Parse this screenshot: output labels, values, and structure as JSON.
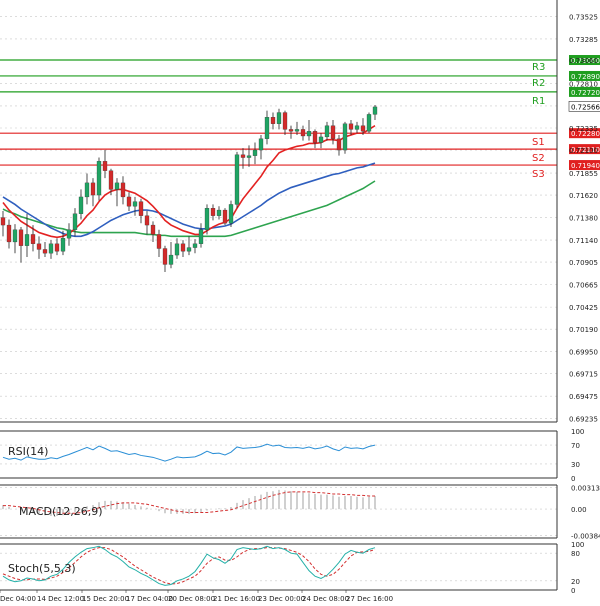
{
  "chart_data": {
    "type": "candlestick",
    "main": {
      "ylim": [
        0.692,
        0.737
      ],
      "y_ticks": [
        "0.73525",
        "0.73285",
        "0.73060",
        "0.72810",
        "0.72570",
        "0.72335",
        "0.72100",
        "0.71855",
        "0.71620",
        "0.71380",
        "0.71140",
        "0.70905",
        "0.70665",
        "0.70425",
        "0.70190",
        "0.69950",
        "0.69715",
        "0.69475",
        "0.69235"
      ],
      "current_price": "0.72566",
      "levels": [
        {
          "name": "",
          "value": 0.7306,
          "label": "0.73060",
          "kind": "res"
        },
        {
          "name": "R3",
          "value": 0.7289,
          "label": "0.72890",
          "kind": "res"
        },
        {
          "name": "R2",
          "value": 0.7272,
          "label": "0.72720",
          "kind": "res"
        },
        {
          "name": "R1",
          "value": 0.7228,
          "label": "0.72280",
          "kind": "sup",
          "side": "above"
        },
        {
          "name": "S1",
          "value": 0.7228,
          "label": "",
          "kind": "skip"
        },
        {
          "name": "S2",
          "value": 0.7211,
          "label": "0.72110",
          "kind": "sup"
        },
        {
          "name": "S3",
          "value": 0.7194,
          "label": "0.71940",
          "kind": "sup"
        }
      ],
      "candles": [
        [
          0.7138,
          0.713,
          0.7145,
          0.7118
        ],
        [
          0.713,
          0.7112,
          0.7136,
          0.7105
        ],
        [
          0.7112,
          0.7125,
          0.7131,
          0.71
        ],
        [
          0.7125,
          0.7108,
          0.7128,
          0.709
        ],
        [
          0.7108,
          0.712,
          0.7142,
          0.7096
        ],
        [
          0.712,
          0.711,
          0.713,
          0.7102
        ],
        [
          0.711,
          0.7104,
          0.7118,
          0.7094
        ],
        [
          0.7104,
          0.71,
          0.7112,
          0.7096
        ],
        [
          0.71,
          0.711,
          0.7114,
          0.7094
        ],
        [
          0.711,
          0.7102,
          0.7116,
          0.7098
        ],
        [
          0.7102,
          0.7116,
          0.7124,
          0.7098
        ],
        [
          0.7116,
          0.7125,
          0.7132,
          0.7108
        ],
        [
          0.7125,
          0.7142,
          0.7148,
          0.7118
        ],
        [
          0.7142,
          0.716,
          0.7168,
          0.7136
        ],
        [
          0.716,
          0.7175,
          0.7185,
          0.7152
        ],
        [
          0.7175,
          0.7162,
          0.718,
          0.715
        ],
        [
          0.7162,
          0.7198,
          0.7202,
          0.7156
        ],
        [
          0.7198,
          0.7188,
          0.721,
          0.718
        ],
        [
          0.7188,
          0.7168,
          0.719,
          0.7162
        ],
        [
          0.7168,
          0.7175,
          0.718,
          0.715
        ],
        [
          0.7175,
          0.716,
          0.7182,
          0.7152
        ],
        [
          0.716,
          0.715,
          0.7165,
          0.7145
        ],
        [
          0.715,
          0.7155,
          0.716,
          0.714
        ],
        [
          0.7155,
          0.714,
          0.7158,
          0.7132
        ],
        [
          0.714,
          0.713,
          0.7145,
          0.712
        ],
        [
          0.713,
          0.712,
          0.7134,
          0.7112
        ],
        [
          0.712,
          0.7105,
          0.7125,
          0.7096
        ],
        [
          0.7105,
          0.7088,
          0.7108,
          0.708
        ],
        [
          0.7088,
          0.7098,
          0.7112,
          0.7084
        ],
        [
          0.7098,
          0.711,
          0.7116,
          0.7094
        ],
        [
          0.711,
          0.7102,
          0.7114,
          0.7096
        ],
        [
          0.7102,
          0.7106,
          0.7118,
          0.7098
        ],
        [
          0.7106,
          0.711,
          0.7115,
          0.71
        ],
        [
          0.711,
          0.7125,
          0.7132,
          0.7106
        ],
        [
          0.7125,
          0.7148,
          0.7152,
          0.712
        ],
        [
          0.7148,
          0.714,
          0.7152,
          0.7135
        ],
        [
          0.714,
          0.7146,
          0.715,
          0.7136
        ],
        [
          0.7146,
          0.7132,
          0.7148,
          0.713
        ],
        [
          0.7132,
          0.7152,
          0.7156,
          0.7128
        ],
        [
          0.7152,
          0.7205,
          0.7208,
          0.7148
        ],
        [
          0.7205,
          0.7202,
          0.7212,
          0.719
        ],
        [
          0.7202,
          0.7204,
          0.7215,
          0.7192
        ],
        [
          0.7204,
          0.721,
          0.7218,
          0.7195
        ],
        [
          0.721,
          0.7222,
          0.7226,
          0.72
        ],
        [
          0.7222,
          0.7245,
          0.7252,
          0.7216
        ],
        [
          0.7245,
          0.7238,
          0.725,
          0.7232
        ],
        [
          0.7238,
          0.725,
          0.7254,
          0.7232
        ],
        [
          0.725,
          0.7232,
          0.7252,
          0.7226
        ],
        [
          0.7232,
          0.723,
          0.7236,
          0.7222
        ],
        [
          0.723,
          0.7232,
          0.724,
          0.7226
        ],
        [
          0.7232,
          0.7225,
          0.7236,
          0.722
        ],
        [
          0.7225,
          0.723,
          0.7242,
          0.722
        ],
        [
          0.723,
          0.7218,
          0.7232,
          0.7212
        ],
        [
          0.7218,
          0.7224,
          0.7228,
          0.7212
        ],
        [
          0.7224,
          0.7236,
          0.724,
          0.722
        ],
        [
          0.7236,
          0.7222,
          0.7242,
          0.7216
        ],
        [
          0.7222,
          0.721,
          0.7226,
          0.7204
        ],
        [
          0.721,
          0.7238,
          0.724,
          0.7206
        ],
        [
          0.7238,
          0.7232,
          0.7242,
          0.7226
        ],
        [
          0.7232,
          0.7236,
          0.724,
          0.7228
        ],
        [
          0.7236,
          0.723,
          0.7244,
          0.7226
        ],
        [
          0.723,
          0.7248,
          0.725,
          0.7228
        ],
        [
          0.7248,
          0.7256,
          0.7258,
          0.7242
        ]
      ],
      "ma_fast": [
        0.7154,
        0.7146,
        0.714,
        0.7134,
        0.713,
        0.7126,
        0.7122,
        0.712,
        0.7118,
        0.7117,
        0.7118,
        0.7121,
        0.7126,
        0.7132,
        0.714,
        0.7146,
        0.7155,
        0.7162,
        0.7166,
        0.7168,
        0.7168,
        0.7166,
        0.7164,
        0.716,
        0.7156,
        0.715,
        0.7143,
        0.7135,
        0.713,
        0.7127,
        0.7124,
        0.7122,
        0.712,
        0.712,
        0.7124,
        0.7128,
        0.7131,
        0.7133,
        0.7137,
        0.7148,
        0.7158,
        0.7166,
        0.7174,
        0.7182,
        0.7192,
        0.7199,
        0.7207,
        0.721,
        0.7212,
        0.7214,
        0.7215,
        0.7217,
        0.7217,
        0.7218,
        0.7221,
        0.7221,
        0.722,
        0.7224,
        0.7226,
        0.7228,
        0.7228,
        0.7232,
        0.7236
      ],
      "ma_mid": [
        0.716,
        0.7156,
        0.7152,
        0.7147,
        0.7143,
        0.7139,
        0.7135,
        0.7131,
        0.7127,
        0.7124,
        0.7121,
        0.7119,
        0.7118,
        0.7118,
        0.712,
        0.7123,
        0.7127,
        0.7131,
        0.7135,
        0.7138,
        0.7141,
        0.7143,
        0.7145,
        0.7146,
        0.7146,
        0.7145,
        0.7143,
        0.714,
        0.7137,
        0.7134,
        0.7131,
        0.7129,
        0.7127,
        0.7126,
        0.7126,
        0.7127,
        0.7128,
        0.7129,
        0.7131,
        0.7135,
        0.7139,
        0.7143,
        0.7147,
        0.7151,
        0.7156,
        0.716,
        0.7164,
        0.7167,
        0.717,
        0.7172,
        0.7174,
        0.7176,
        0.7178,
        0.718,
        0.7182,
        0.7184,
        0.7185,
        0.7187,
        0.7189,
        0.7191,
        0.7192,
        0.7194,
        0.7196
      ],
      "ma_slow": [
        0.7147,
        0.7144,
        0.7142,
        0.7139,
        0.7137,
        0.7135,
        0.7133,
        0.7131,
        0.7129,
        0.7127,
        0.7126,
        0.7124,
        0.7123,
        0.7122,
        0.7122,
        0.7122,
        0.7122,
        0.7122,
        0.7122,
        0.7122,
        0.7122,
        0.7122,
        0.7122,
        0.7121,
        0.712,
        0.712,
        0.7119,
        0.7119,
        0.7118,
        0.7118,
        0.7118,
        0.7118,
        0.7118,
        0.7118,
        0.7118,
        0.7118,
        0.7118,
        0.7118,
        0.7119,
        0.7121,
        0.7123,
        0.7125,
        0.7127,
        0.7129,
        0.7131,
        0.7133,
        0.7135,
        0.7137,
        0.7139,
        0.7141,
        0.7143,
        0.7145,
        0.7147,
        0.7149,
        0.7151,
        0.7154,
        0.7157,
        0.716,
        0.7163,
        0.7166,
        0.7169,
        0.7173,
        0.7177
      ]
    },
    "rsi": {
      "label": "RSI(14)",
      "ylim": [
        0,
        100
      ],
      "ticks": [
        "100",
        "70",
        "30",
        "0"
      ],
      "values": [
        44,
        40,
        42,
        38,
        45,
        42,
        40,
        40,
        43,
        41,
        46,
        50,
        55,
        60,
        65,
        60,
        68,
        63,
        57,
        58,
        54,
        50,
        52,
        48,
        46,
        44,
        40,
        36,
        40,
        45,
        43,
        44,
        45,
        50,
        57,
        52,
        53,
        49,
        55,
        66,
        63,
        64,
        65,
        67,
        72,
        68,
        70,
        65,
        64,
        65,
        63,
        66,
        62,
        64,
        68,
        62,
        58,
        66,
        63,
        64,
        62,
        67,
        70
      ]
    },
    "macd": {
      "label": "MACD(12,26,9)",
      "ylim": [
        -0.0042,
        0.0035
      ],
      "ticks": [
        "0.003139",
        "0.00",
        "-0.00384"
      ],
      "values": [
        0.0006,
        0.0003,
        0.0,
        -0.0003,
        -0.0004,
        -0.0006,
        -0.0008,
        -0.0009,
        -0.001,
        -0.001,
        -0.0009,
        -0.0007,
        -0.0004,
        0.0,
        0.0004,
        0.0006,
        0.001,
        0.0012,
        0.0012,
        0.0011,
        0.001,
        0.0008,
        0.0006,
        0.0004,
        0.0002,
        0.0,
        -0.0003,
        -0.0006,
        -0.0007,
        -0.0007,
        -0.0007,
        -0.0007,
        -0.0006,
        -0.0005,
        -0.0002,
        0.0,
        0.0001,
        0.0001,
        0.0003,
        0.0009,
        0.0013,
        0.0016,
        0.0019,
        0.0021,
        0.0025,
        0.0026,
        0.0028,
        0.0027,
        0.0026,
        0.0025,
        0.0024,
        0.0023,
        0.0022,
        0.0021,
        0.0021,
        0.002,
        0.0018,
        0.0019,
        0.0019,
        0.0018,
        0.0017,
        0.0018,
        0.0019
      ],
      "signal": [
        0.0005,
        0.0005,
        0.0004,
        0.0003,
        0.0002,
        0.0001,
        -0.0001,
        -0.0003,
        -0.0004,
        -0.0005,
        -0.0006,
        -0.0006,
        -0.0006,
        -0.0005,
        -0.0003,
        -0.0001,
        0.0002,
        0.0004,
        0.0006,
        0.0008,
        0.0009,
        0.0009,
        0.0009,
        0.0008,
        0.0007,
        0.0005,
        0.0003,
        0.0001,
        -0.0001,
        -0.0003,
        -0.0004,
        -0.0005,
        -0.0005,
        -0.0005,
        -0.0005,
        -0.0004,
        -0.0003,
        -0.0002,
        -0.0001,
        0.0002,
        0.0005,
        0.0008,
        0.0011,
        0.0014,
        0.0017,
        0.002,
        0.0022,
        0.0024,
        0.0025,
        0.0025,
        0.0025,
        0.0025,
        0.0024,
        0.0024,
        0.0023,
        0.0022,
        0.0022,
        0.0021,
        0.0021,
        0.002,
        0.002,
        0.0019,
        0.0019
      ]
    },
    "stoch": {
      "label": "Stoch(5,5,3)",
      "ylim": [
        0,
        100
      ],
      "ticks": [
        "100",
        "80",
        "20",
        "0"
      ],
      "k": [
        30,
        22,
        18,
        20,
        26,
        24,
        20,
        22,
        30,
        34,
        45,
        60,
        72,
        82,
        90,
        92,
        95,
        88,
        78,
        72,
        62,
        50,
        44,
        36,
        30,
        22,
        14,
        10,
        12,
        20,
        24,
        30,
        40,
        58,
        78,
        70,
        66,
        58,
        68,
        88,
        92,
        90,
        88,
        90,
        95,
        90,
        92,
        88,
        80,
        78,
        60,
        42,
        30,
        25,
        32,
        45,
        60,
        78,
        86,
        82,
        80,
        88,
        92
      ],
      "d": [
        35,
        30,
        25,
        22,
        22,
        24,
        24,
        23,
        26,
        30,
        38,
        48,
        60,
        72,
        82,
        88,
        92,
        92,
        88,
        80,
        72,
        62,
        52,
        44,
        36,
        28,
        22,
        16,
        13,
        14,
        18,
        24,
        30,
        42,
        58,
        68,
        72,
        65,
        64,
        72,
        82,
        88,
        90,
        90,
        92,
        92,
        91,
        90,
        86,
        82,
        74,
        62,
        46,
        34,
        30,
        34,
        45,
        60,
        74,
        82,
        83,
        84,
        88
      ],
      "label_visible": true
    },
    "x_labels": [
      "Dec 04:00",
      "14 Dec 12:00",
      "15 Dec 20:00",
      "17 Dec 04:00",
      "20 Dec 08:00",
      "21 Dec 16:00",
      "23 Dec 00:00",
      "24 Dec 08:00",
      "27 Dec 16:00"
    ],
    "colors": {
      "bull": "#1fa463",
      "bear": "#d32a2a",
      "wick": "#222222",
      "ma_fast": "#e32222",
      "ma_mid": "#2f5fbf",
      "ma_slow": "#2ea44f",
      "res": "#1f9e1f",
      "sup": "#e02020",
      "rsi": "#2b8fd6",
      "macd_bar": "#a0a0a0",
      "macd_signal": "#d33030",
      "stoch_k": "#24b0a8",
      "stoch_d": "#d33030",
      "grid": "#c8c8c8",
      "price_box": "#ffffff"
    }
  }
}
